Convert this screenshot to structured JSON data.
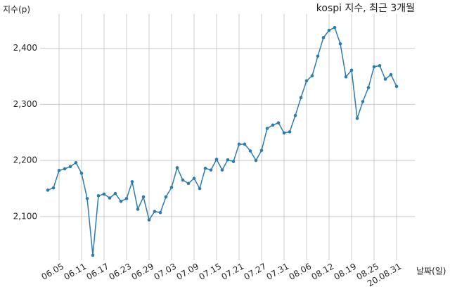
{
  "chart_data": {
    "type": "line",
    "title": "kospi 지수, 최근 3개월",
    "y_label": "지수(p)",
    "x_label": "날짜(일)",
    "categories": [
      null,
      null,
      "06.05",
      null,
      null,
      null,
      "06.11",
      null,
      null,
      null,
      "06.17",
      null,
      null,
      null,
      "06.23",
      null,
      null,
      null,
      "06.29",
      null,
      null,
      null,
      "07.03",
      null,
      null,
      null,
      "07.09",
      null,
      null,
      null,
      "07.15",
      null,
      null,
      null,
      "07.21",
      null,
      null,
      null,
      "07.27",
      null,
      null,
      null,
      "07.31",
      null,
      null,
      null,
      "08.06",
      null,
      null,
      null,
      "08.12",
      null,
      null,
      null,
      "08.19",
      null,
      null,
      null,
      "08.25",
      null,
      null,
      null,
      "20.08.31"
    ],
    "series": [
      {
        "name": "kospi",
        "color": "#2e7bb0",
        "values": [
          2147,
          2151,
          2182,
          2185,
          2189,
          2196,
          2177,
          2132,
          2031,
          2137,
          2140,
          2133,
          2141,
          2127,
          2132,
          2162,
          2113,
          2135,
          2094,
          2109,
          2107,
          2135,
          2152,
          2187,
          2165,
          2159,
          2168,
          2150,
          2186,
          2183,
          2202,
          2183,
          2201,
          2198,
          2229,
          2229,
          2217,
          2200,
          2218,
          2257,
          2263,
          2267,
          2249,
          2251,
          2280,
          2312,
          2342,
          2351,
          2386,
          2419,
          2432,
          2437,
          2408,
          2349,
          2361,
          2275,
          2305,
          2330,
          2367,
          2369,
          2345,
          2353,
          2332
        ]
      }
    ],
    "ylim": [
      2022,
      2461
    ],
    "yticks": [
      {
        "value": 2100,
        "label": "2,100"
      },
      {
        "value": 2200,
        "label": "2,200"
      },
      {
        "value": 2300,
        "label": "2,300"
      },
      {
        "value": 2400,
        "label": "2,400"
      }
    ],
    "grid": true
  }
}
